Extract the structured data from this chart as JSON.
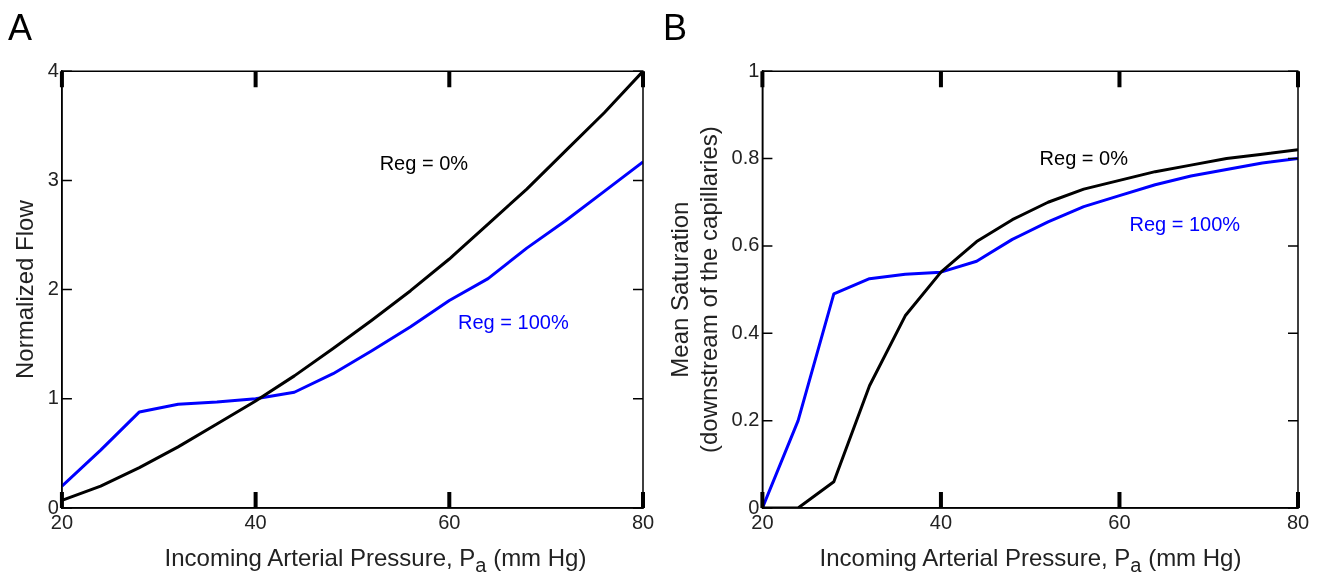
{
  "chart_data": [
    {
      "type": "line",
      "title": "A",
      "xlabel": "Incoming Arterial Pressure, P$_{a}$ (mm Hg)",
      "ylabel": "Normalized Flow",
      "x": [
        20,
        24,
        28,
        32,
        36,
        40,
        44,
        48,
        52,
        56,
        60,
        64,
        68,
        72,
        76,
        80
      ],
      "xlim": [
        20,
        80
      ],
      "xticks": [
        20,
        40,
        60,
        80
      ],
      "ylim": [
        0,
        4
      ],
      "yticks": [
        0,
        1,
        2,
        3,
        4
      ],
      "grid": false,
      "legend": false,
      "marker": "none",
      "line_style": "solid",
      "series": [
        {
          "name": "Reg = 0%",
          "color": "#000000",
          "values": [
            0.07,
            0.2,
            0.37,
            0.56,
            0.77,
            0.98,
            1.21,
            1.46,
            1.72,
            1.99,
            2.28,
            2.6,
            2.92,
            3.27,
            3.62,
            4.0
          ]
        },
        {
          "name": "Reg = 100%",
          "color": "#0000ff",
          "values": [
            0.2,
            0.53,
            0.88,
            0.95,
            0.97,
            1.0,
            1.06,
            1.23,
            1.44,
            1.66,
            1.9,
            2.1,
            2.38,
            2.63,
            2.9,
            3.17
          ]
        }
      ]
    },
    {
      "type": "line",
      "title": "B",
      "xlabel": "Incoming Arterial Pressure, P$_{a}$ (mm Hg)",
      "ylabel": "Mean Saturation\n(downstream of the capillaries)",
      "x": [
        20,
        24,
        28,
        32,
        36,
        40,
        44,
        48,
        52,
        56,
        60,
        64,
        68,
        72,
        76,
        80
      ],
      "xlim": [
        20,
        80
      ],
      "xticks": [
        20,
        40,
        60,
        80
      ],
      "ylim": [
        0,
        1
      ],
      "yticks": [
        0,
        0.2,
        0.4,
        0.6,
        0.8,
        1
      ],
      "grid": false,
      "legend": false,
      "marker": "none",
      "line_style": "solid",
      "series": [
        {
          "name": "Reg = 0%",
          "color": "#000000",
          "values": [
            0,
            0,
            0.06,
            0.28,
            0.44,
            0.54,
            0.61,
            0.66,
            0.7,
            0.73,
            0.75,
            0.77,
            0.785,
            0.8,
            0.81,
            0.82
          ]
        },
        {
          "name": "Reg = 100%",
          "color": "#0000ff",
          "values": [
            0,
            0.2,
            0.49,
            0.525,
            0.535,
            0.54,
            0.565,
            0.615,
            0.655,
            0.69,
            0.715,
            0.74,
            0.76,
            0.775,
            0.79,
            0.8
          ]
        }
      ]
    }
  ]
}
